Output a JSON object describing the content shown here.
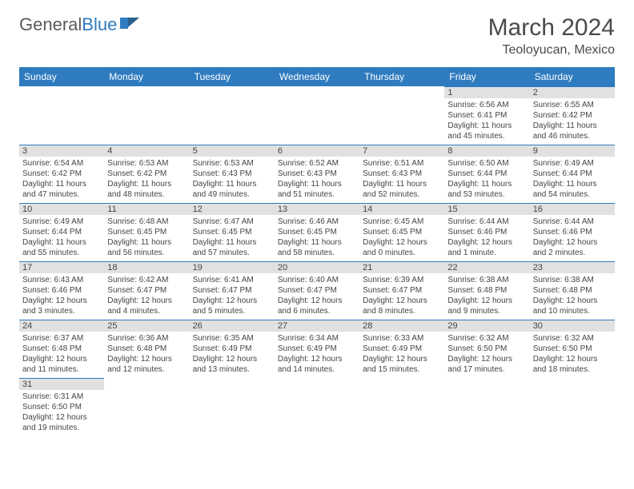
{
  "logo": {
    "word1": "General",
    "word2": "Blue"
  },
  "title": {
    "month": "March 2024",
    "location": "Teoloyucan, Mexico"
  },
  "colors": {
    "header_bg": "#2f7bbf",
    "header_text": "#ffffff",
    "daynum_bg": "#e1e1e1",
    "text": "#454545",
    "border_top": "#2f7bbf"
  },
  "dayNames": [
    "Sunday",
    "Monday",
    "Tuesday",
    "Wednesday",
    "Thursday",
    "Friday",
    "Saturday"
  ],
  "weeks": [
    [
      null,
      null,
      null,
      null,
      null,
      {
        "n": "1",
        "sr": "Sunrise: 6:56 AM",
        "ss": "Sunset: 6:41 PM",
        "dl": "Daylight: 11 hours and 45 minutes."
      },
      {
        "n": "2",
        "sr": "Sunrise: 6:55 AM",
        "ss": "Sunset: 6:42 PM",
        "dl": "Daylight: 11 hours and 46 minutes."
      }
    ],
    [
      {
        "n": "3",
        "sr": "Sunrise: 6:54 AM",
        "ss": "Sunset: 6:42 PM",
        "dl": "Daylight: 11 hours and 47 minutes."
      },
      {
        "n": "4",
        "sr": "Sunrise: 6:53 AM",
        "ss": "Sunset: 6:42 PM",
        "dl": "Daylight: 11 hours and 48 minutes."
      },
      {
        "n": "5",
        "sr": "Sunrise: 6:53 AM",
        "ss": "Sunset: 6:43 PM",
        "dl": "Daylight: 11 hours and 49 minutes."
      },
      {
        "n": "6",
        "sr": "Sunrise: 6:52 AM",
        "ss": "Sunset: 6:43 PM",
        "dl": "Daylight: 11 hours and 51 minutes."
      },
      {
        "n": "7",
        "sr": "Sunrise: 6:51 AM",
        "ss": "Sunset: 6:43 PM",
        "dl": "Daylight: 11 hours and 52 minutes."
      },
      {
        "n": "8",
        "sr": "Sunrise: 6:50 AM",
        "ss": "Sunset: 6:44 PM",
        "dl": "Daylight: 11 hours and 53 minutes."
      },
      {
        "n": "9",
        "sr": "Sunrise: 6:49 AM",
        "ss": "Sunset: 6:44 PM",
        "dl": "Daylight: 11 hours and 54 minutes."
      }
    ],
    [
      {
        "n": "10",
        "sr": "Sunrise: 6:49 AM",
        "ss": "Sunset: 6:44 PM",
        "dl": "Daylight: 11 hours and 55 minutes."
      },
      {
        "n": "11",
        "sr": "Sunrise: 6:48 AM",
        "ss": "Sunset: 6:45 PM",
        "dl": "Daylight: 11 hours and 56 minutes."
      },
      {
        "n": "12",
        "sr": "Sunrise: 6:47 AM",
        "ss": "Sunset: 6:45 PM",
        "dl": "Daylight: 11 hours and 57 minutes."
      },
      {
        "n": "13",
        "sr": "Sunrise: 6:46 AM",
        "ss": "Sunset: 6:45 PM",
        "dl": "Daylight: 11 hours and 58 minutes."
      },
      {
        "n": "14",
        "sr": "Sunrise: 6:45 AM",
        "ss": "Sunset: 6:45 PM",
        "dl": "Daylight: 12 hours and 0 minutes."
      },
      {
        "n": "15",
        "sr": "Sunrise: 6:44 AM",
        "ss": "Sunset: 6:46 PM",
        "dl": "Daylight: 12 hours and 1 minute."
      },
      {
        "n": "16",
        "sr": "Sunrise: 6:44 AM",
        "ss": "Sunset: 6:46 PM",
        "dl": "Daylight: 12 hours and 2 minutes."
      }
    ],
    [
      {
        "n": "17",
        "sr": "Sunrise: 6:43 AM",
        "ss": "Sunset: 6:46 PM",
        "dl": "Daylight: 12 hours and 3 minutes."
      },
      {
        "n": "18",
        "sr": "Sunrise: 6:42 AM",
        "ss": "Sunset: 6:47 PM",
        "dl": "Daylight: 12 hours and 4 minutes."
      },
      {
        "n": "19",
        "sr": "Sunrise: 6:41 AM",
        "ss": "Sunset: 6:47 PM",
        "dl": "Daylight: 12 hours and 5 minutes."
      },
      {
        "n": "20",
        "sr": "Sunrise: 6:40 AM",
        "ss": "Sunset: 6:47 PM",
        "dl": "Daylight: 12 hours and 6 minutes."
      },
      {
        "n": "21",
        "sr": "Sunrise: 6:39 AM",
        "ss": "Sunset: 6:47 PM",
        "dl": "Daylight: 12 hours and 8 minutes."
      },
      {
        "n": "22",
        "sr": "Sunrise: 6:38 AM",
        "ss": "Sunset: 6:48 PM",
        "dl": "Daylight: 12 hours and 9 minutes."
      },
      {
        "n": "23",
        "sr": "Sunrise: 6:38 AM",
        "ss": "Sunset: 6:48 PM",
        "dl": "Daylight: 12 hours and 10 minutes."
      }
    ],
    [
      {
        "n": "24",
        "sr": "Sunrise: 6:37 AM",
        "ss": "Sunset: 6:48 PM",
        "dl": "Daylight: 12 hours and 11 minutes."
      },
      {
        "n": "25",
        "sr": "Sunrise: 6:36 AM",
        "ss": "Sunset: 6:48 PM",
        "dl": "Daylight: 12 hours and 12 minutes."
      },
      {
        "n": "26",
        "sr": "Sunrise: 6:35 AM",
        "ss": "Sunset: 6:49 PM",
        "dl": "Daylight: 12 hours and 13 minutes."
      },
      {
        "n": "27",
        "sr": "Sunrise: 6:34 AM",
        "ss": "Sunset: 6:49 PM",
        "dl": "Daylight: 12 hours and 14 minutes."
      },
      {
        "n": "28",
        "sr": "Sunrise: 6:33 AM",
        "ss": "Sunset: 6:49 PM",
        "dl": "Daylight: 12 hours and 15 minutes."
      },
      {
        "n": "29",
        "sr": "Sunrise: 6:32 AM",
        "ss": "Sunset: 6:50 PM",
        "dl": "Daylight: 12 hours and 17 minutes."
      },
      {
        "n": "30",
        "sr": "Sunrise: 6:32 AM",
        "ss": "Sunset: 6:50 PM",
        "dl": "Daylight: 12 hours and 18 minutes."
      }
    ],
    [
      {
        "n": "31",
        "sr": "Sunrise: 6:31 AM",
        "ss": "Sunset: 6:50 PM",
        "dl": "Daylight: 12 hours and 19 minutes."
      },
      null,
      null,
      null,
      null,
      null,
      null
    ]
  ]
}
